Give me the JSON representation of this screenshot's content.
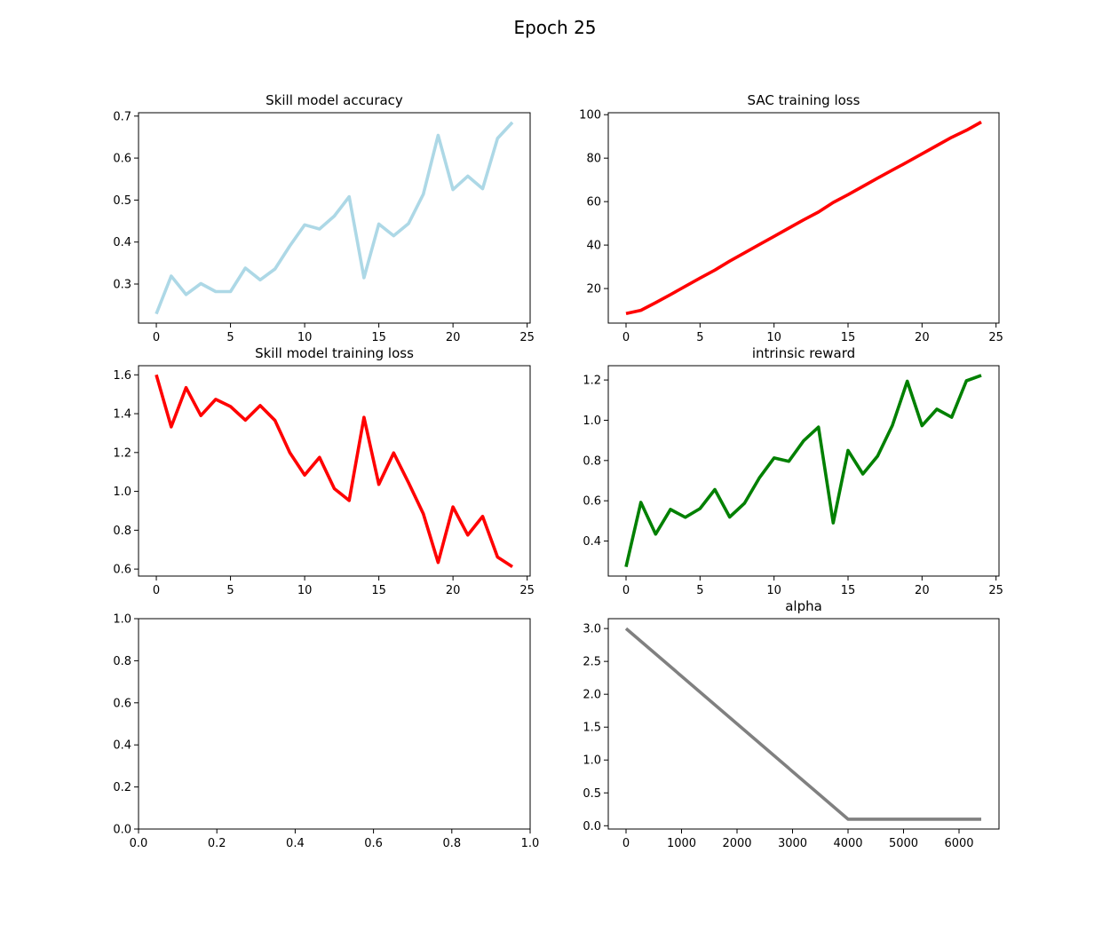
{
  "figure": {
    "suptitle": "Epoch 25"
  },
  "chart_data": [
    {
      "type": "line",
      "title": "Skill model accuracy",
      "xlabel": "",
      "ylabel": "",
      "color": "#add8e6",
      "xlim": [
        -1.2,
        25.2
      ],
      "ylim": [
        0.207,
        0.708
      ],
      "xticks": [
        0,
        5,
        10,
        15,
        20,
        25
      ],
      "yticks": [
        0.3,
        0.4,
        0.5,
        0.6,
        0.7
      ],
      "x": [
        0,
        1,
        2,
        3,
        4,
        5,
        6,
        7,
        8,
        9,
        10,
        11,
        12,
        13,
        14,
        15,
        16,
        17,
        18,
        19,
        20,
        21,
        22,
        23,
        24
      ],
      "y": [
        0.229,
        0.319,
        0.275,
        0.301,
        0.282,
        0.282,
        0.338,
        0.31,
        0.336,
        0.391,
        0.441,
        0.431,
        0.462,
        0.508,
        0.315,
        0.443,
        0.415,
        0.444,
        0.514,
        0.654,
        0.525,
        0.557,
        0.527,
        0.647,
        0.685
      ]
    },
    {
      "type": "line",
      "title": "SAC training loss",
      "xlabel": "",
      "ylabel": "",
      "color": "#ff0000",
      "xlim": [
        -1.2,
        25.2
      ],
      "ylim": [
        4.1,
        100.9
      ],
      "xticks": [
        0,
        5,
        10,
        15,
        20,
        25
      ],
      "yticks": [
        20,
        40,
        60,
        80,
        100
      ],
      "x": [
        0,
        1,
        2,
        3,
        4,
        5,
        6,
        7,
        8,
        9,
        10,
        11,
        12,
        13,
        14,
        15,
        16,
        17,
        18,
        19,
        20,
        21,
        22,
        23,
        24
      ],
      "y": [
        8.5,
        10.0,
        13.5,
        17.2,
        21.0,
        24.8,
        28.5,
        32.6,
        36.4,
        40.2,
        44.0,
        47.8,
        51.6,
        55.2,
        59.6,
        63.2,
        67.0,
        70.8,
        74.5,
        78.2,
        82.0,
        85.8,
        89.6,
        92.8,
        96.6
      ]
    },
    {
      "type": "line",
      "title": "Skill model training loss",
      "xlabel": "",
      "ylabel": "",
      "color": "#ff0000",
      "xlim": [
        -1.2,
        25.2
      ],
      "ylim": [
        0.564,
        1.647
      ],
      "xticks": [
        0,
        5,
        10,
        15,
        20,
        25
      ],
      "yticks": [
        0.6,
        0.8,
        1.0,
        1.2,
        1.4,
        1.6
      ],
      "x": [
        0,
        1,
        2,
        3,
        4,
        5,
        6,
        7,
        8,
        9,
        10,
        11,
        12,
        13,
        14,
        15,
        16,
        17,
        18,
        19,
        20,
        21,
        22,
        23,
        24
      ],
      "y": [
        1.6,
        1.332,
        1.534,
        1.39,
        1.474,
        1.437,
        1.367,
        1.442,
        1.365,
        1.199,
        1.084,
        1.175,
        1.014,
        0.953,
        1.381,
        1.036,
        1.198,
        1.045,
        0.885,
        0.634,
        0.92,
        0.775,
        0.871,
        0.662,
        0.612
      ]
    },
    {
      "type": "line",
      "title": "intrinsic reward",
      "xlabel": "",
      "ylabel": "",
      "color": "#008000",
      "xlim": [
        -1.2,
        25.2
      ],
      "ylim": [
        0.226,
        1.271
      ],
      "xticks": [
        0,
        5,
        10,
        15,
        20,
        25
      ],
      "yticks": [
        0.4,
        0.6,
        0.8,
        1.0,
        1.2
      ],
      "x": [
        0,
        1,
        2,
        3,
        4,
        5,
        6,
        7,
        8,
        9,
        10,
        11,
        12,
        13,
        14,
        15,
        16,
        17,
        18,
        19,
        20,
        21,
        22,
        23,
        24
      ],
      "y": [
        0.272,
        0.592,
        0.434,
        0.557,
        0.518,
        0.561,
        0.656,
        0.519,
        0.587,
        0.713,
        0.813,
        0.796,
        0.898,
        0.966,
        0.49,
        0.85,
        0.733,
        0.822,
        0.975,
        1.194,
        0.973,
        1.055,
        1.015,
        1.196,
        1.223
      ]
    },
    {
      "type": "line",
      "title": "",
      "xlabel": "",
      "ylabel": "",
      "color": "#000000",
      "xlim": [
        0.0,
        1.0
      ],
      "ylim": [
        0.0,
        1.0
      ],
      "xticks": [
        0.0,
        0.2,
        0.4,
        0.6,
        0.8,
        1.0
      ],
      "yticks": [
        0.0,
        0.2,
        0.4,
        0.6,
        0.8,
        1.0
      ],
      "x": [],
      "y": []
    },
    {
      "type": "line",
      "title": "alpha",
      "xlabel": "",
      "ylabel": "",
      "color": "#808080",
      "xlim": [
        -320,
        6720
      ],
      "ylim": [
        -0.05,
        3.15
      ],
      "xticks": [
        0,
        1000,
        2000,
        3000,
        4000,
        5000,
        6000
      ],
      "yticks": [
        0.0,
        0.5,
        1.0,
        1.5,
        2.0,
        2.5,
        3.0
      ],
      "x": [
        0,
        4000,
        6400
      ],
      "y": [
        3.0,
        0.1,
        0.1
      ]
    }
  ]
}
